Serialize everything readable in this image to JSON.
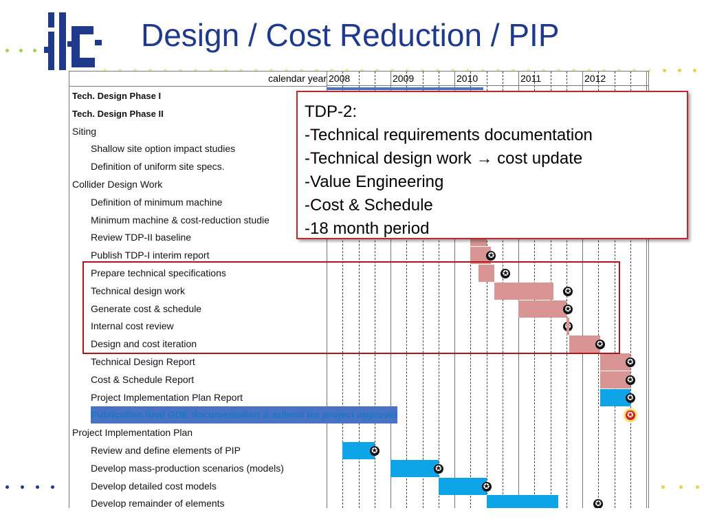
{
  "slide": {
    "title": "Design / Cost Reduction / PIP",
    "logo_text": "ilc",
    "colors": {
      "title": "#1f3a8a",
      "pink_bar": "#d99594",
      "cyan_bar": "#0ea5e8",
      "blue_bar": "#4a72c4",
      "frame": "#b0141a"
    }
  },
  "gantt": {
    "header_label": "calendar year",
    "years": [
      "2008",
      "2009",
      "2010",
      "2011",
      "2012"
    ],
    "rows": [
      {
        "label": "Tech. Design Phase I",
        "style": "bold"
      },
      {
        "label": "Tech. Design Phase II",
        "style": "bold"
      },
      {
        "label": "Siting",
        "style": "top"
      },
      {
        "label": "Shallow site option impact studies",
        "style": "ind"
      },
      {
        "label": "Definition of uniform site specs.",
        "style": "ind"
      },
      {
        "label": "Collider Design Work",
        "style": "top"
      },
      {
        "label": "Definition of minimum machine",
        "style": "ind"
      },
      {
        "label": "Minimum machine & cost-reduction studie",
        "style": "ind"
      },
      {
        "label": "Review TDP-II baseline",
        "style": "ind"
      },
      {
        "label": "Publish TDP-I interim report",
        "style": "ind"
      },
      {
        "label": "Prepare technical specifications",
        "style": "ind"
      },
      {
        "label": "Technical design work",
        "style": "ind"
      },
      {
        "label": "Generate cost & schedule",
        "style": "ind"
      },
      {
        "label": "Internal cost review",
        "style": "ind"
      },
      {
        "label": "Design and cost iteration",
        "style": "ind"
      },
      {
        "label": "Technical Design Report",
        "style": "ind"
      },
      {
        "label": "Cost & Schedule Report",
        "style": "ind"
      },
      {
        "label": "Project Implementation Plan Report",
        "style": "ind"
      },
      {
        "label": "Publication final GDE documentation & submit for project approval",
        "style": "blue"
      },
      {
        "label": "Project Implementation Plan",
        "style": "top"
      },
      {
        "label": "Review and define elements of PIP",
        "style": "ind"
      },
      {
        "label": "Develop mass-production scenarios (models)",
        "style": "ind"
      },
      {
        "label": "Develop detailed cost models",
        "style": "ind"
      },
      {
        "label": "Develop remainder of elements",
        "style": "ind"
      }
    ]
  },
  "callout": {
    "lines": [
      "TDP-2:",
      "-Technical requirements documentation",
      "-Technical design work → cost update",
      "-Value Engineering",
      "-Cost & Schedule",
      "-18 month period"
    ]
  }
}
